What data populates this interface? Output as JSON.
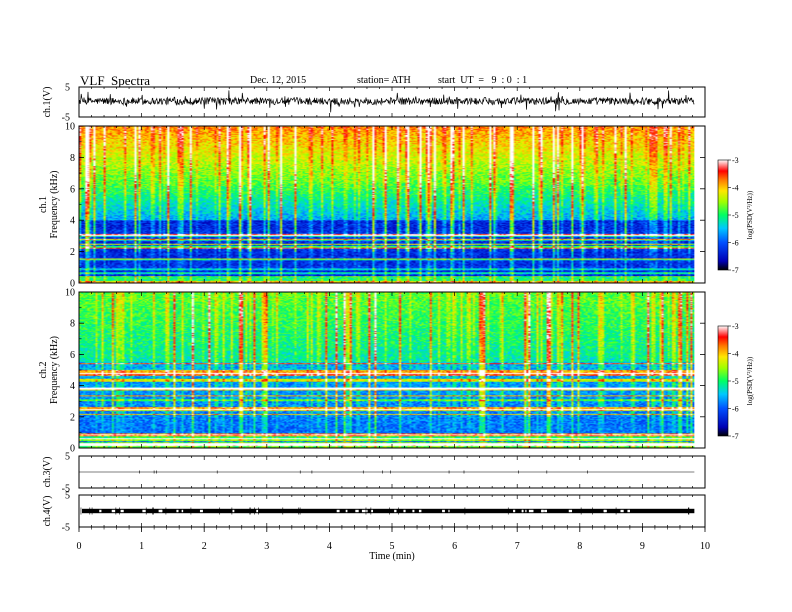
{
  "header": {
    "title": "VLF  Spectra",
    "date": "Dec. 12, 2015",
    "station": "station= ATH",
    "start": "start  UT  =   9  : 0  : 1"
  },
  "chart_data": [
    {
      "type": "line",
      "panel": "ch1-waveform",
      "ylabel": "ch.1(V)",
      "yticks": [
        "5",
        "-5"
      ],
      "ylim": [
        -5,
        5
      ],
      "xlim": [
        0,
        10
      ],
      "color": "#000000"
    },
    {
      "type": "heatmap",
      "panel": "ch1-spectrogram",
      "ylabel": [
        "ch.1",
        "Frequency (kHz)"
      ],
      "yticks": [
        "10",
        "8",
        "6",
        "4",
        "2",
        "0"
      ],
      "ylim": [
        0,
        10
      ],
      "xlim": [
        0,
        10
      ],
      "data_end_minute": 9.83,
      "colorbar": {
        "label": "log(PSD(V²/Hz))",
        "ticks": [
          "-3",
          "-4",
          "-5",
          "-6",
          "-7"
        ],
        "range": [
          -7,
          -3
        ]
      }
    },
    {
      "type": "heatmap",
      "panel": "ch2-spectrogram",
      "ylabel": [
        "ch.2",
        "Frequency (kHz)"
      ],
      "yticks": [
        "10",
        "8",
        "6",
        "4",
        "2",
        "0"
      ],
      "ylim": [
        0,
        10
      ],
      "xlim": [
        0,
        10
      ],
      "data_end_minute": 9.83,
      "colorbar": {
        "label": "log(PSD(V²/Hz))",
        "ticks": [
          "-3",
          "-4",
          "-5",
          "-6",
          "-7"
        ],
        "range": [
          -7,
          -3
        ]
      }
    },
    {
      "type": "line",
      "panel": "ch3-waveform",
      "ylabel": "ch.3(V)",
      "yticks": [
        "5",
        "-5"
      ],
      "ylim": [
        -5,
        5
      ],
      "xlim": [
        0,
        10
      ]
    },
    {
      "type": "line",
      "panel": "ch4-waveform",
      "ylabel": "ch.4(V)",
      "yticks": [
        "5",
        "-5"
      ],
      "ylim": [
        -5,
        5
      ],
      "xlim": [
        0,
        10
      ]
    }
  ],
  "xaxis": {
    "label": "Time  (min)",
    "ticks": [
      "0",
      "1",
      "2",
      "3",
      "4",
      "5",
      "6",
      "7",
      "8",
      "9",
      "10"
    ],
    "range": [
      0,
      10
    ]
  }
}
